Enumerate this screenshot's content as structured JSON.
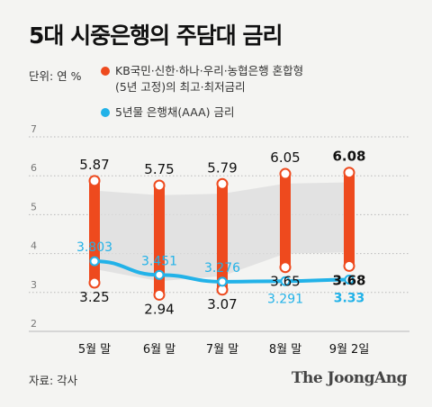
{
  "title": "5대 시중은행의 주담대 금리",
  "unit": "단위: 연 %",
  "legend": [
    {
      "label_line1": "KB국민·신한·하나·우리·농협은행 혼합형",
      "label_line2": "(5년 고정)의 최고·최저금리",
      "color": "#ee4a1e"
    },
    {
      "label_line1": "5년물 은행채(AAA) 금리",
      "label_line2": "",
      "color": "#22b2e8"
    }
  ],
  "source": "자료: 각사",
  "brand": "The JoongAng",
  "chart_data": {
    "type": "line",
    "categories": [
      "5월 말",
      "6월 말",
      "7월 말",
      "8월 말",
      "9월 2일"
    ],
    "yticks": [
      2,
      3,
      4,
      5,
      6,
      7
    ],
    "ylim": [
      2,
      7
    ],
    "grid": true,
    "series": [
      {
        "name": "최고금리",
        "color": "#ee4a1e",
        "values": [
          5.87,
          5.75,
          5.79,
          6.05,
          6.08
        ]
      },
      {
        "name": "최저금리",
        "color": "#ee4a1e",
        "values": [
          3.25,
          2.94,
          3.07,
          3.65,
          3.68
        ]
      },
      {
        "name": "5년물 은행채(AAA) 금리",
        "color": "#22b2e8",
        "values": [
          3.803,
          3.451,
          3.276,
          3.291,
          3.33
        ]
      }
    ],
    "high_labels": [
      "5.87",
      "5.75",
      "5.79",
      "6.05",
      "6.08"
    ],
    "low_labels": [
      "3.25",
      "2.94",
      "3.07",
      "3.65",
      "3.68"
    ],
    "bond_labels": [
      "3.803",
      "3.451",
      "3.276",
      "3.291",
      "3.33"
    ]
  }
}
